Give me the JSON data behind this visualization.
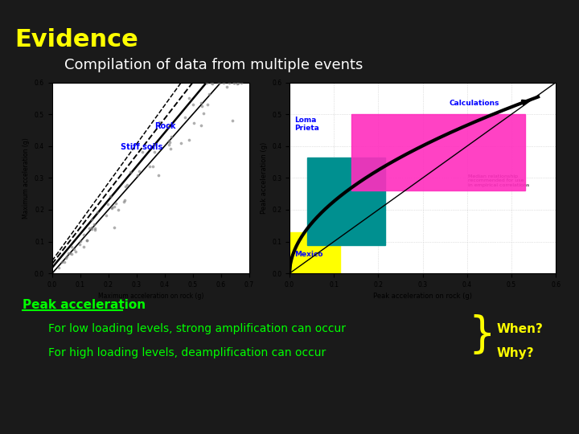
{
  "bg_color": "#1a1a1a",
  "title": "Evidence",
  "title_color": "#ffff00",
  "title_fontsize": 22,
  "subtitle": "Compilation of data from multiple events",
  "subtitle_color": "#ffffff",
  "subtitle_fontsize": 13,
  "left_chart_label_rock": "Rock",
  "left_chart_label_stiff": "Stiff soils",
  "left_label_color": "#0000ff",
  "right_chart_label_calc": "Calculations",
  "right_chart_label_loma": "Loma\nPrieta",
  "right_chart_label_mexico": "Mexico",
  "right_label_color": "#0000ff",
  "peak_accel_label": "Peak acceleration",
  "peak_accel_color": "#00ff00",
  "bullet1": "For low loading levels, strong amplification can occur",
  "bullet2": "For high loading levels, deamplification can occur",
  "bullet_color": "#00ff00",
  "when_text": "When?",
  "why_text": "Why?",
  "answer_color": "#ffff00",
  "brace_color": "#ffff00",
  "text_fontsize": 11
}
